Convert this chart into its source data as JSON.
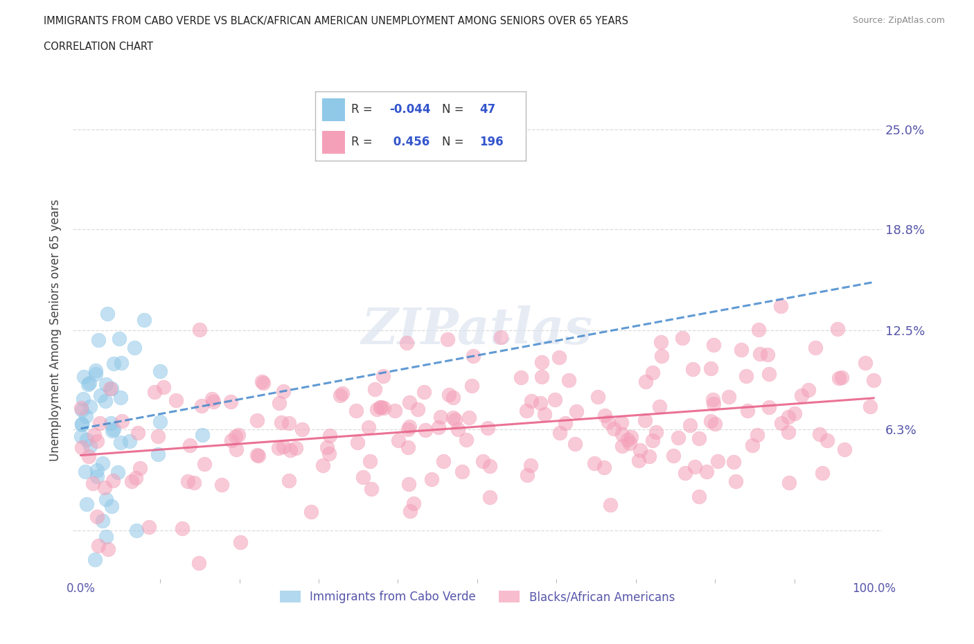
{
  "title_line1": "IMMIGRANTS FROM CABO VERDE VS BLACK/AFRICAN AMERICAN UNEMPLOYMENT AMONG SENIORS OVER 65 YEARS",
  "title_line2": "CORRELATION CHART",
  "source": "Source: ZipAtlas.com",
  "ylabel": "Unemployment Among Seniors over 65 years",
  "xmin": 0.0,
  "xmax": 1.0,
  "ymin": -0.03,
  "ymax": 0.28,
  "yticks": [
    0.0,
    0.063,
    0.125,
    0.188,
    0.25
  ],
  "ytick_labels": [
    "",
    "6.3%",
    "12.5%",
    "18.8%",
    "25.0%"
  ],
  "xticks": [
    0.0,
    1.0
  ],
  "xtick_labels": [
    "0.0%",
    "100.0%"
  ],
  "color_blue": "#90C8E8",
  "color_pink": "#F4A0B8",
  "line_blue": "#4488CC",
  "line_pink": "#E8638A",
  "legend_R_blue": "-0.044",
  "legend_N_blue": "47",
  "legend_R_pink": "0.456",
  "legend_N_pink": "196",
  "title_color": "#222222",
  "axis_label_color": "#444444",
  "tick_color": "#5555AA",
  "watermark": "ZIPatlas",
  "background_color": "#ffffff",
  "grid_color": "#cccccc",
  "legend_label_blue": "Immigrants from Cabo Verde",
  "legend_label_pink": "Blacks/African Americans"
}
